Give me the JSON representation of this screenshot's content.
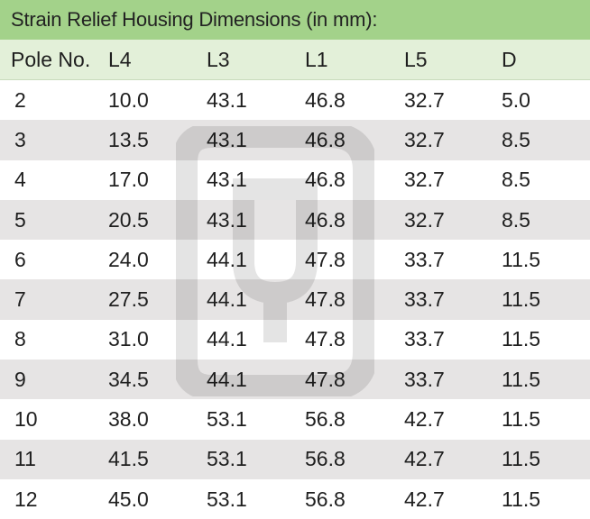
{
  "title": "Strain Relief Housing Dimensions (in mm):",
  "columns": [
    "Pole No.",
    "L4",
    "L3",
    "L1",
    "L5",
    "D"
  ],
  "rows": [
    [
      "2",
      "10.0",
      "43.1",
      "46.8",
      "32.7",
      "5.0"
    ],
    [
      "3",
      "13.5",
      "43.1",
      "46.8",
      "32.7",
      "8.5"
    ],
    [
      "4",
      "17.0",
      "43.1",
      "46.8",
      "32.7",
      "8.5"
    ],
    [
      "5",
      "20.5",
      "43.1",
      "46.8",
      "32.7",
      "8.5"
    ],
    [
      "6",
      "24.0",
      "44.1",
      "47.8",
      "33.7",
      "11.5"
    ],
    [
      "7",
      "27.5",
      "44.1",
      "47.8",
      "33.7",
      "11.5"
    ],
    [
      "8",
      "31.0",
      "44.1",
      "47.8",
      "33.7",
      "11.5"
    ],
    [
      "9",
      "34.5",
      "44.1",
      "47.8",
      "33.7",
      "11.5"
    ],
    [
      "10",
      "38.0",
      "53.1",
      "56.8",
      "42.7",
      "11.5"
    ],
    [
      "11",
      "41.5",
      "53.1",
      "56.8",
      "42.7",
      "11.5"
    ],
    [
      "12",
      "45.0",
      "53.1",
      "56.8",
      "42.7",
      "11.5"
    ]
  ],
  "colors": {
    "title_bg": "#a3d28a",
    "header_bg": "#e3f0d9",
    "shaded_row_bg": "#e6e4e4",
    "plain_row_bg": "#ffffff"
  },
  "watermark_icon": "plug-logo-watermark"
}
